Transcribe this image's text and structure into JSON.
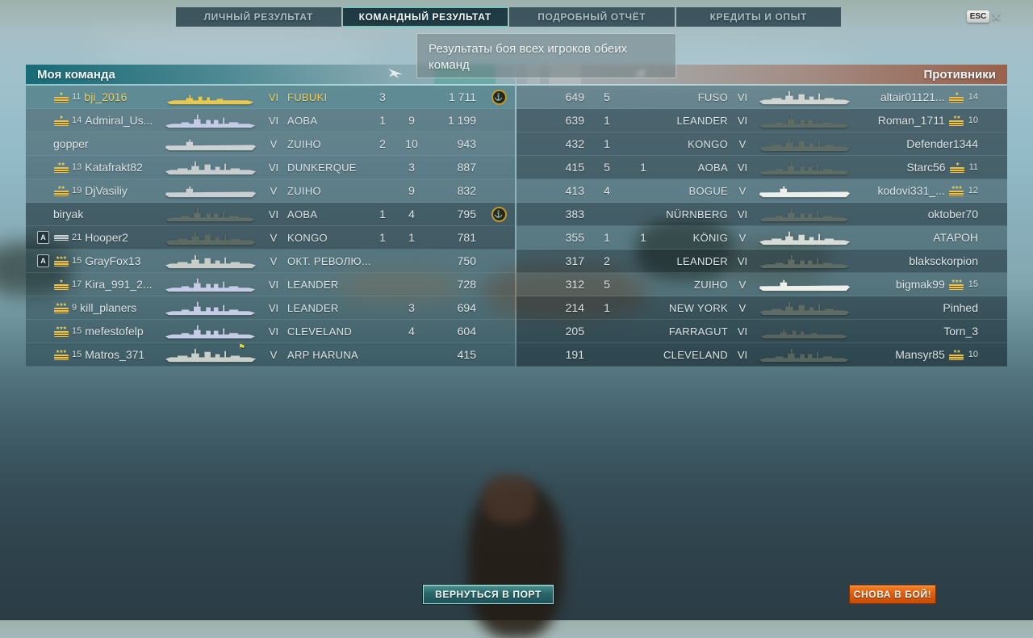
{
  "tabs": [
    {
      "label": "ЛИЧНЫЙ РЕЗУЛЬТАТ",
      "active": false
    },
    {
      "label": "КОМАНДНЫЙ РЕЗУЛЬТАТ",
      "active": true
    },
    {
      "label": "ПОДРОБНЫЙ ОТЧЁТ",
      "active": false
    },
    {
      "label": "КРЕДИТЫ И ОПЫТ",
      "active": false
    }
  ],
  "esc_label": "ESC",
  "close_label": "✕",
  "tooltip": {
    "text": "Результаты боя всех игроков обеих команд"
  },
  "buttons": {
    "back_to_port": "ВЕРНУТЬСЯ В ПОРТ",
    "battle_again": "СНОВА В БОЙ!"
  },
  "colors": {
    "ally_header": "#1a6a76",
    "enemy_header": "#98543a",
    "self_gold": "#f2d263",
    "ship_dead": "#5e6c66",
    "button_orange": "#e05d0d",
    "button_teal": "#2a6668",
    "tab_accent": "#59cfc2"
  },
  "teams": {
    "left": {
      "title": "Моя команда",
      "rows": [
        {
          "division": "",
          "rank": 11,
          "stars": 1,
          "insignia": "gold",
          "name": "bji_2016",
          "self": true,
          "dead": false,
          "type": "dd",
          "tier": "VI",
          "ship": "FUBUKI",
          "kills": "3",
          "planes": "",
          "xp": "1 711",
          "medal": true,
          "flag": false,
          "ship_color": "#e9c84e"
        },
        {
          "division": "",
          "rank": 14,
          "stars": 1,
          "insignia": "gold",
          "name": "Admiral_Us...",
          "self": false,
          "dead": false,
          "type": "cruiser",
          "tier": "VI",
          "ship": "AOBA",
          "kills": "1",
          "planes": "9",
          "xp": "1 199",
          "medal": false,
          "flag": false,
          "ship_color": "#c4cce6"
        },
        {
          "division": "",
          "rank": 0,
          "stars": 0,
          "insignia": "gold",
          "name": "gopper",
          "self": false,
          "dead": false,
          "type": "cv",
          "tier": "V",
          "ship": "ZUIHO",
          "kills": "2",
          "planes": "10",
          "xp": "943",
          "medal": false,
          "flag": false,
          "ship_color": "#ccd2d4"
        },
        {
          "division": "",
          "rank": 13,
          "stars": 2,
          "insignia": "gold",
          "name": "Katafrakt82",
          "self": false,
          "dead": false,
          "type": "bb",
          "tier": "VI",
          "ship": "DUNKERQUE",
          "kills": "",
          "planes": "3",
          "xp": "887",
          "medal": false,
          "flag": false,
          "ship_color": "#c8cdd0"
        },
        {
          "division": "",
          "rank": 19,
          "stars": 2,
          "insignia": "gold",
          "name": "DjVasiliy",
          "self": false,
          "dead": false,
          "type": "cv",
          "tier": "V",
          "ship": "ZUIHO",
          "kills": "",
          "planes": "9",
          "xp": "832",
          "medal": false,
          "flag": false,
          "ship_color": "#c9cfd2"
        },
        {
          "division": "",
          "rank": 0,
          "stars": 0,
          "insignia": "gold",
          "name": "biryak",
          "self": false,
          "dead": true,
          "type": "cruiser",
          "tier": "VI",
          "ship": "AOBA",
          "kills": "1",
          "planes": "4",
          "xp": "795",
          "medal": true,
          "flag": false,
          "ship_color": "#5f6e66"
        },
        {
          "division": "А",
          "rank": 21,
          "stars": 0,
          "insignia": "silver",
          "name": "Hooper2",
          "self": false,
          "dead": true,
          "type": "bb",
          "tier": "V",
          "ship": "KONGO",
          "kills": "1",
          "planes": "1",
          "xp": "781",
          "medal": false,
          "flag": false,
          "ship_color": "#5c6a62"
        },
        {
          "division": "А",
          "rank": 15,
          "stars": 3,
          "insignia": "gold",
          "name": "GrayFox13",
          "self": false,
          "dead": false,
          "type": "bb",
          "tier": "V",
          "ship": "ОКТ. РЕВОЛЮ...",
          "kills": "",
          "planes": "",
          "xp": "750",
          "medal": false,
          "flag": false,
          "ship_color": "#c8cdc9"
        },
        {
          "division": "",
          "rank": 17,
          "stars": 1,
          "insignia": "gold",
          "name": "Kira_991_2...",
          "self": false,
          "dead": false,
          "type": "cruiser",
          "tier": "VI",
          "ship": "LEANDER",
          "kills": "",
          "planes": "",
          "xp": "728",
          "medal": false,
          "flag": false,
          "ship_color": "#c4cce6"
        },
        {
          "division": "",
          "rank": 9,
          "stars": 3,
          "insignia": "gold",
          "name": "kill_planers",
          "self": false,
          "dead": false,
          "type": "cruiser",
          "tier": "VI",
          "ship": "LEANDER",
          "kills": "",
          "planes": "3",
          "xp": "694",
          "medal": false,
          "flag": false,
          "ship_color": "#c4cce6"
        },
        {
          "division": "",
          "rank": 15,
          "stars": 3,
          "insignia": "gold",
          "name": "mefestofelp",
          "self": false,
          "dead": false,
          "type": "cruiser",
          "tier": "VI",
          "ship": "CLEVELAND",
          "kills": "",
          "planes": "4",
          "xp": "604",
          "medal": false,
          "flag": false,
          "ship_color": "#c4cce6"
        },
        {
          "division": "",
          "rank": 15,
          "stars": 3,
          "insignia": "gold",
          "name": "Matros_371",
          "self": false,
          "dead": false,
          "type": "bb",
          "tier": "V",
          "ship": "ARP HARUNA",
          "kills": "",
          "planes": "",
          "xp": "415",
          "medal": false,
          "flag": true,
          "ship_color": "#c9cfc8"
        }
      ]
    },
    "right": {
      "title": "Противники",
      "rows": [
        {
          "xp": "649",
          "planes": "5",
          "kills": "",
          "ship": "FUSO",
          "tier": "VI",
          "type": "bb",
          "name": "altair01121...",
          "rank": 14,
          "stars": 1,
          "insignia": "gold",
          "dead": false,
          "ship_color": "#d2d6d0"
        },
        {
          "xp": "639",
          "planes": "1",
          "kills": "",
          "ship": "LEANDER",
          "tier": "VI",
          "type": "cruiser",
          "name": "Roman_1711",
          "rank": 10,
          "stars": 2,
          "insignia": "gold",
          "dead": true,
          "ship_color": "#5e6c66"
        },
        {
          "xp": "432",
          "planes": "1",
          "kills": "",
          "ship": "KONGO",
          "tier": "V",
          "type": "bb",
          "name": "Defender1344",
          "rank": 0,
          "stars": 0,
          "insignia": "gold",
          "dead": true,
          "ship_color": "#5e6c66"
        },
        {
          "xp": "415",
          "planes": "5",
          "kills": "1",
          "ship": "AOBA",
          "tier": "VI",
          "type": "cruiser",
          "name": "Starc56",
          "rank": 11,
          "stars": 1,
          "insignia": "gold",
          "dead": true,
          "ship_color": "#5e6c66"
        },
        {
          "xp": "413",
          "planes": "4",
          "kills": "",
          "ship": "BOGUE",
          "tier": "V",
          "type": "cv",
          "name": "kodovi331_...",
          "rank": 12,
          "stars": 3,
          "insignia": "gold",
          "dead": false,
          "ship_color": "#edf0ea"
        },
        {
          "xp": "383",
          "planes": "",
          "kills": "",
          "ship": "NÜRNBERG",
          "tier": "VI",
          "type": "cruiser",
          "name": "oktober70",
          "rank": 0,
          "stars": 0,
          "insignia": "gold",
          "dead": true,
          "ship_color": "#5e6c66"
        },
        {
          "xp": "355",
          "planes": "1",
          "kills": "1",
          "ship": "KÖNIG",
          "tier": "V",
          "type": "bb",
          "name": "АТАРОН",
          "rank": 0,
          "stars": 0,
          "insignia": "gold",
          "dead": false,
          "ship_color": "#d8dcd6"
        },
        {
          "xp": "317",
          "planes": "2",
          "kills": "",
          "ship": "LEANDER",
          "tier": "VI",
          "type": "cruiser",
          "name": "blaksckorpion",
          "rank": 0,
          "stars": 0,
          "insignia": "gold",
          "dead": true,
          "ship_color": "#5e6c66"
        },
        {
          "xp": "312",
          "planes": "5",
          "kills": "",
          "ship": "ZUIHO",
          "tier": "V",
          "type": "cv",
          "name": "bigmak99",
          "rank": 15,
          "stars": 3,
          "insignia": "gold",
          "dead": false,
          "ship_color": "#eef1eb"
        },
        {
          "xp": "214",
          "planes": "1",
          "kills": "",
          "ship": "NEW YORK",
          "tier": "V",
          "type": "bb",
          "name": "Pinhed",
          "rank": 0,
          "stars": 0,
          "insignia": "gold",
          "dead": true,
          "ship_color": "#5e6c66"
        },
        {
          "xp": "205",
          "planes": "",
          "kills": "",
          "ship": "FARRAGUT",
          "tier": "VI",
          "type": "dd",
          "name": "Torn_3",
          "rank": 0,
          "stars": 0,
          "insignia": "gold",
          "dead": true,
          "ship_color": "#56635e"
        },
        {
          "xp": "191",
          "planes": "",
          "kills": "",
          "ship": "CLEVELAND",
          "tier": "VI",
          "type": "cruiser",
          "name": "Mansyr85",
          "rank": 10,
          "stars": 2,
          "insignia": "gold",
          "dead": true,
          "ship_color": "#57655f"
        }
      ]
    }
  }
}
